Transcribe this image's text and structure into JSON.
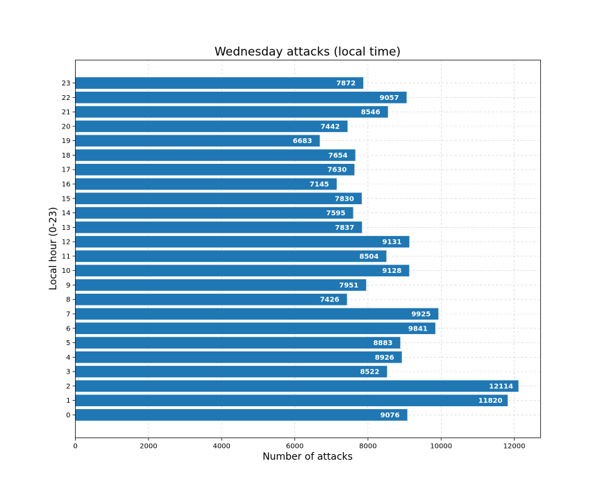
{
  "chart_data": {
    "type": "bar",
    "orientation": "horizontal",
    "title": "Wednesday attacks (local time)",
    "xlabel": "Number of attacks",
    "ylabel": "Local hour (0-23)",
    "categories": [
      "0",
      "1",
      "2",
      "3",
      "4",
      "5",
      "6",
      "7",
      "8",
      "9",
      "10",
      "11",
      "12",
      "13",
      "14",
      "15",
      "16",
      "17",
      "18",
      "19",
      "20",
      "21",
      "22",
      "23"
    ],
    "values": [
      9076,
      11820,
      12114,
      8522,
      8926,
      8883,
      9841,
      9925,
      7426,
      7951,
      9128,
      8504,
      9131,
      7837,
      7595,
      7830,
      7145,
      7630,
      7654,
      6683,
      7442,
      8546,
      9057,
      7872
    ],
    "xticks": [
      0,
      2000,
      4000,
      6000,
      8000,
      10000,
      12000
    ],
    "xlim": [
      0,
      12720
    ],
    "grid": true,
    "bar_color": "#1f77b4"
  }
}
